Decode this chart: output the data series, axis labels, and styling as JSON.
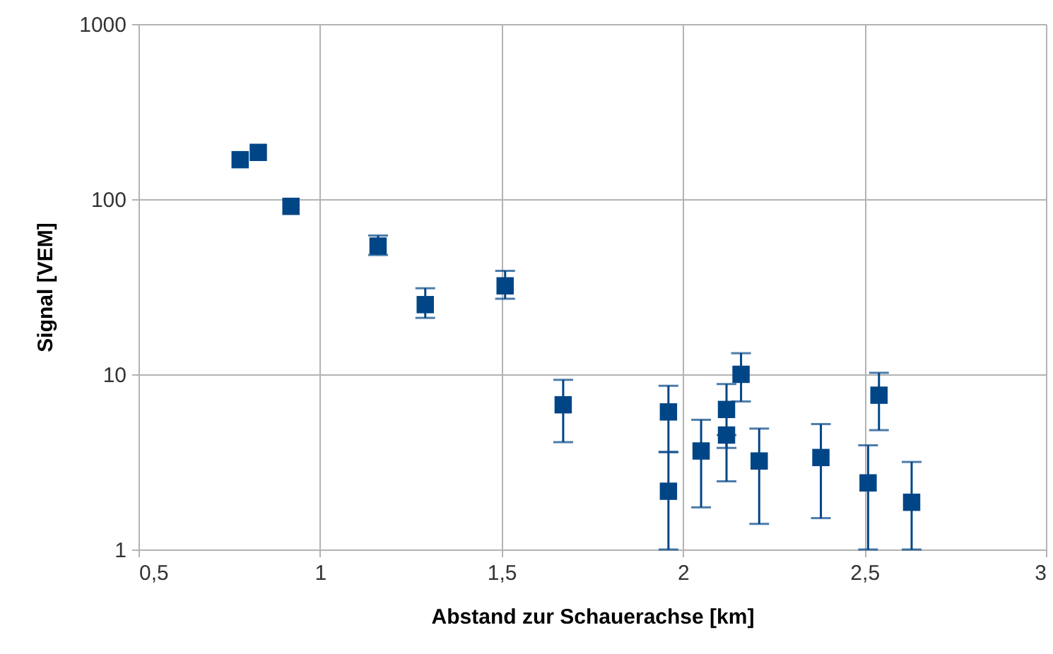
{
  "chart_data": {
    "type": "scatter",
    "xlabel": "Abstand zur Schauerachse [km]",
    "ylabel": "Signal [VEM]",
    "x": [
      0.78,
      0.83,
      0.92,
      1.16,
      1.29,
      1.51,
      1.67,
      1.96,
      1.96,
      2.05,
      2.12,
      2.12,
      2.16,
      2.21,
      2.38,
      2.51,
      2.54,
      2.63
    ],
    "series": [
      {
        "color": "#004586",
        "values": [
          168,
          185,
          91,
          54,
          25,
          32,
          6.7,
          6.1,
          2.15,
          3.65,
          6.3,
          4.5,
          10,
          3.2,
          3.35,
          2.4,
          7.6,
          1.86
        ],
        "errors": [
          null,
          null,
          null,
          [
            48,
            62
          ],
          [
            21,
            31
          ],
          [
            27,
            39
          ],
          [
            4.1,
            9.3
          ],
          [
            3.6,
            8.6
          ],
          [
            1,
            3.6
          ],
          [
            1.74,
            5.5
          ],
          [
            3.8,
            8.8
          ],
          [
            2.45,
            4.5
          ],
          [
            7,
            13.2
          ],
          [
            1.4,
            4.9
          ],
          [
            1.51,
            5.2
          ],
          [
            1,
            3.93
          ],
          [
            4.8,
            10.2
          ],
          [
            1,
            3.16
          ]
        ]
      }
    ],
    "xlim": [
      0.5,
      3
    ],
    "xticks": [
      {
        "value": 0.5,
        "label": "0,5"
      },
      1,
      {
        "value": 1.5,
        "label": "1,5"
      },
      2,
      {
        "value": 2.5,
        "label": "2,5"
      },
      3
    ],
    "ylim": [
      1,
      1000
    ],
    "yticks": [
      1,
      10,
      100,
      1000
    ],
    "log": "y",
    "grid": true,
    "marker": "square"
  }
}
